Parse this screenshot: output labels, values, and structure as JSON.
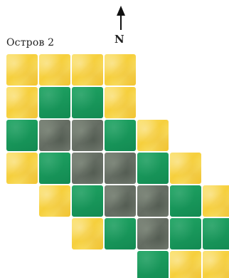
{
  "title": "Остров 2",
  "compass": {
    "letter": "N",
    "icon": "north-arrow-icon"
  },
  "legend_colors": {
    "sand": "#f6cf3c",
    "grass": "#18965a",
    "rock": "#646c62"
  },
  "map": {
    "rows": [
      [
        "sand",
        "sand",
        "sand",
        "sand",
        null,
        null,
        null
      ],
      [
        "sand",
        "grass",
        "grass",
        "sand",
        null,
        null,
        null
      ],
      [
        "grass",
        "rock",
        "rock",
        "grass",
        "sand",
        null,
        null
      ],
      [
        "sand",
        "grass",
        "rock",
        "rock",
        "grass",
        "sand",
        null
      ],
      [
        null,
        "sand",
        "grass",
        "rock",
        "rock",
        "grass",
        "sand"
      ],
      [
        null,
        null,
        "sand",
        "grass",
        "rock",
        "grass",
        "grass"
      ],
      [
        null,
        null,
        null,
        null,
        "grass",
        "sand",
        "sand"
      ]
    ]
  }
}
